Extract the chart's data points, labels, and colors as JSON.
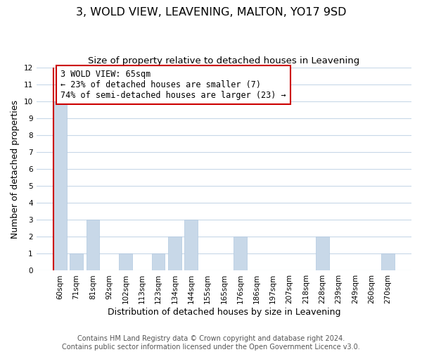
{
  "title": "3, WOLD VIEW, LEAVENING, MALTON, YO17 9SD",
  "subtitle": "Size of property relative to detached houses in Leavening",
  "xlabel": "Distribution of detached houses by size in Leavening",
  "ylabel": "Number of detached properties",
  "categories": [
    "60sqm",
    "71sqm",
    "81sqm",
    "92sqm",
    "102sqm",
    "113sqm",
    "123sqm",
    "134sqm",
    "144sqm",
    "155sqm",
    "165sqm",
    "176sqm",
    "186sqm",
    "197sqm",
    "207sqm",
    "218sqm",
    "228sqm",
    "239sqm",
    "249sqm",
    "260sqm",
    "270sqm"
  ],
  "values": [
    10,
    1,
    3,
    0,
    1,
    0,
    1,
    2,
    3,
    0,
    0,
    2,
    0,
    0,
    0,
    0,
    2,
    0,
    0,
    0,
    1
  ],
  "bar_color": "#c8d8e8",
  "bar_edge_color": "#b0c8e0",
  "subject_index": 0,
  "subject_line_color": "#cc0000",
  "ylim": [
    0,
    12
  ],
  "yticks": [
    0,
    1,
    2,
    3,
    4,
    5,
    6,
    7,
    8,
    9,
    10,
    11,
    12
  ],
  "annotation_text_line1": "3 WOLD VIEW: 65sqm",
  "annotation_text_line2": "← 23% of detached houses are smaller (7)",
  "annotation_text_line3": "74% of semi-detached houses are larger (23) →",
  "annotation_box_color": "#ffffff",
  "annotation_box_edge_color": "#cc0000",
  "grid_color": "#c8d8e8",
  "footer_line1": "Contains HM Land Registry data © Crown copyright and database right 2024.",
  "footer_line2": "Contains public sector information licensed under the Open Government Licence v3.0.",
  "title_fontsize": 11.5,
  "subtitle_fontsize": 9.5,
  "axis_label_fontsize": 9,
  "tick_fontsize": 7.5,
  "annotation_fontsize": 8.5,
  "footer_fontsize": 7
}
